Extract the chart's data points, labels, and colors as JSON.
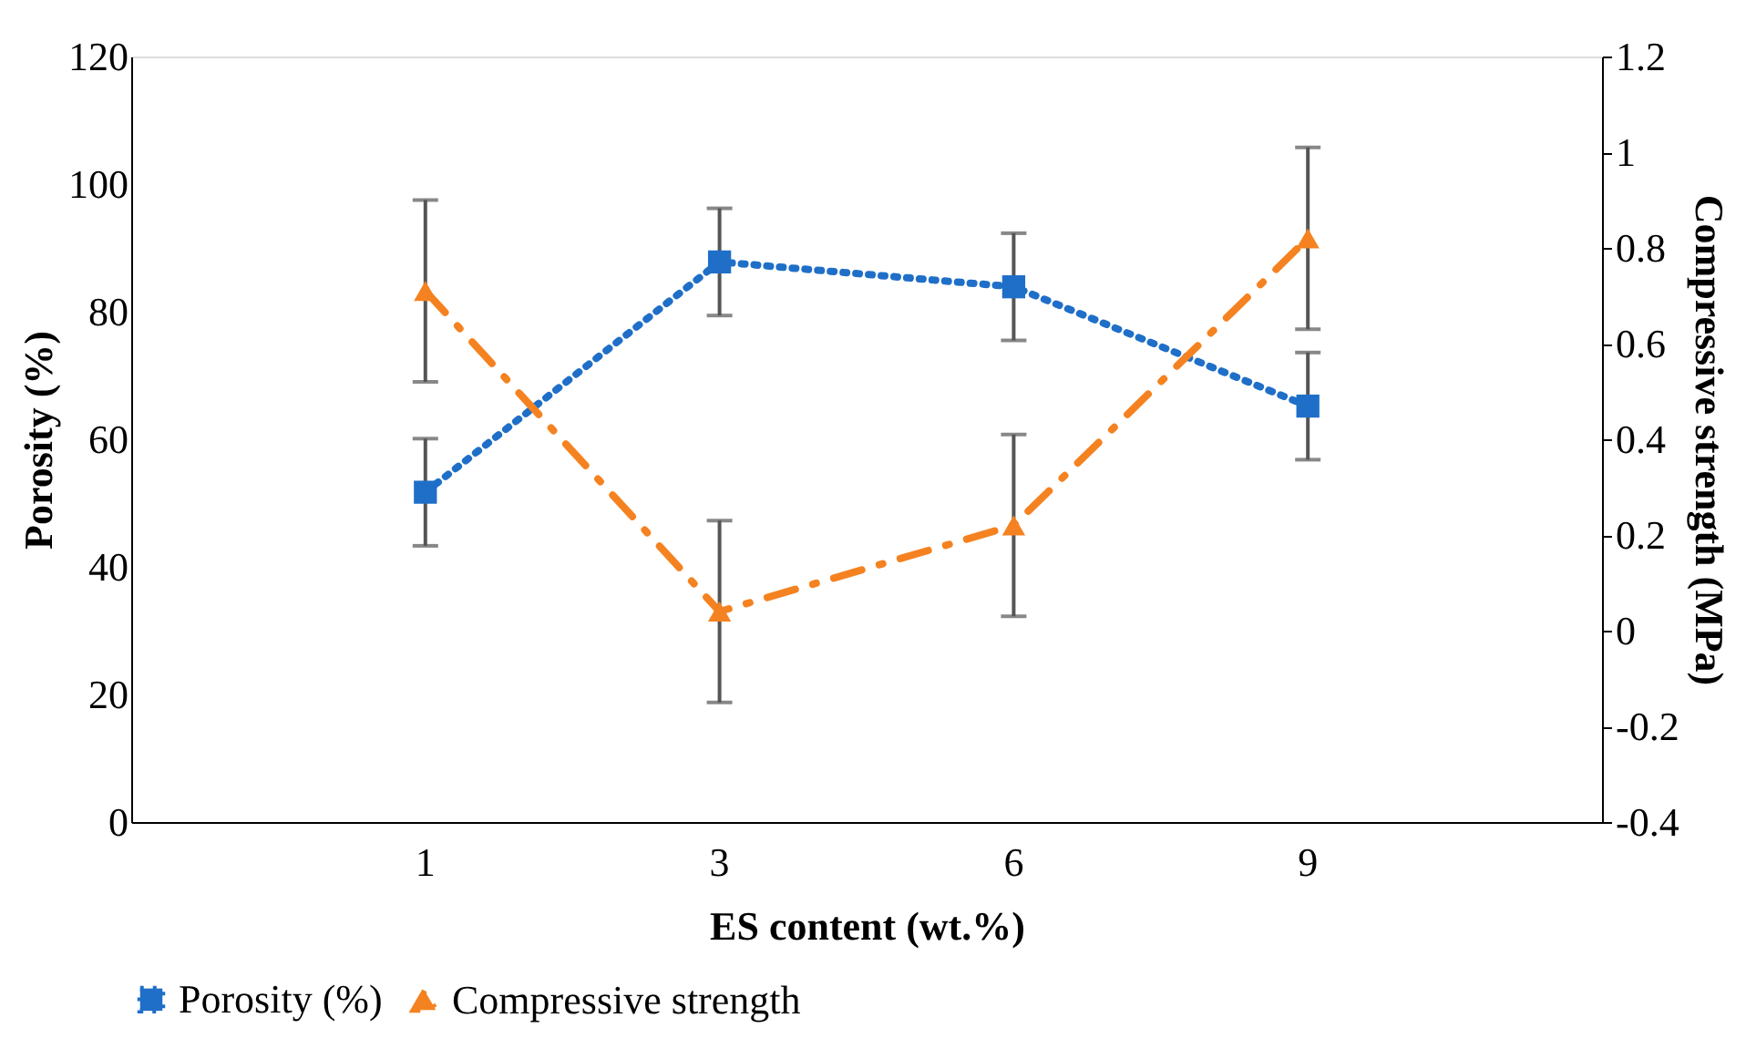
{
  "chart_data": {
    "type": "line",
    "xlabel": "ES content (wt.%)",
    "ylabel": "Porosity (%)",
    "y2label": "Compressive strength (MPa)",
    "categories": [
      "1",
      "3",
      "6",
      "9"
    ],
    "series": [
      {
        "name": "Porosity (%)",
        "color": "#1f6fc8",
        "values": [
          51.7,
          87.8,
          83.9,
          65.2
        ],
        "errors": [
          8.4,
          8.4,
          8.4,
          8.4
        ],
        "marker": "square",
        "line_style": "dotted"
      },
      {
        "name": "Compressive strength",
        "color": "#f58220",
        "values": [
          0.71,
          0.04,
          0.22,
          0.82
        ],
        "errors": [
          0.19,
          0.19,
          0.19,
          0.19
        ],
        "marker": "triangle",
        "line_style": "dashdot",
        "axis": "y2"
      }
    ],
    "ylim": [
      0,
      120
    ],
    "yticks": [
      0,
      20,
      40,
      60,
      80,
      100,
      120
    ],
    "y2lim": [
      -0.4,
      1.2
    ],
    "y2ticks": [
      -0.4,
      -0.2,
      0,
      0.2,
      0.4,
      0.6,
      0.8,
      1,
      1.2
    ],
    "grid": false,
    "legend": "bottom"
  }
}
